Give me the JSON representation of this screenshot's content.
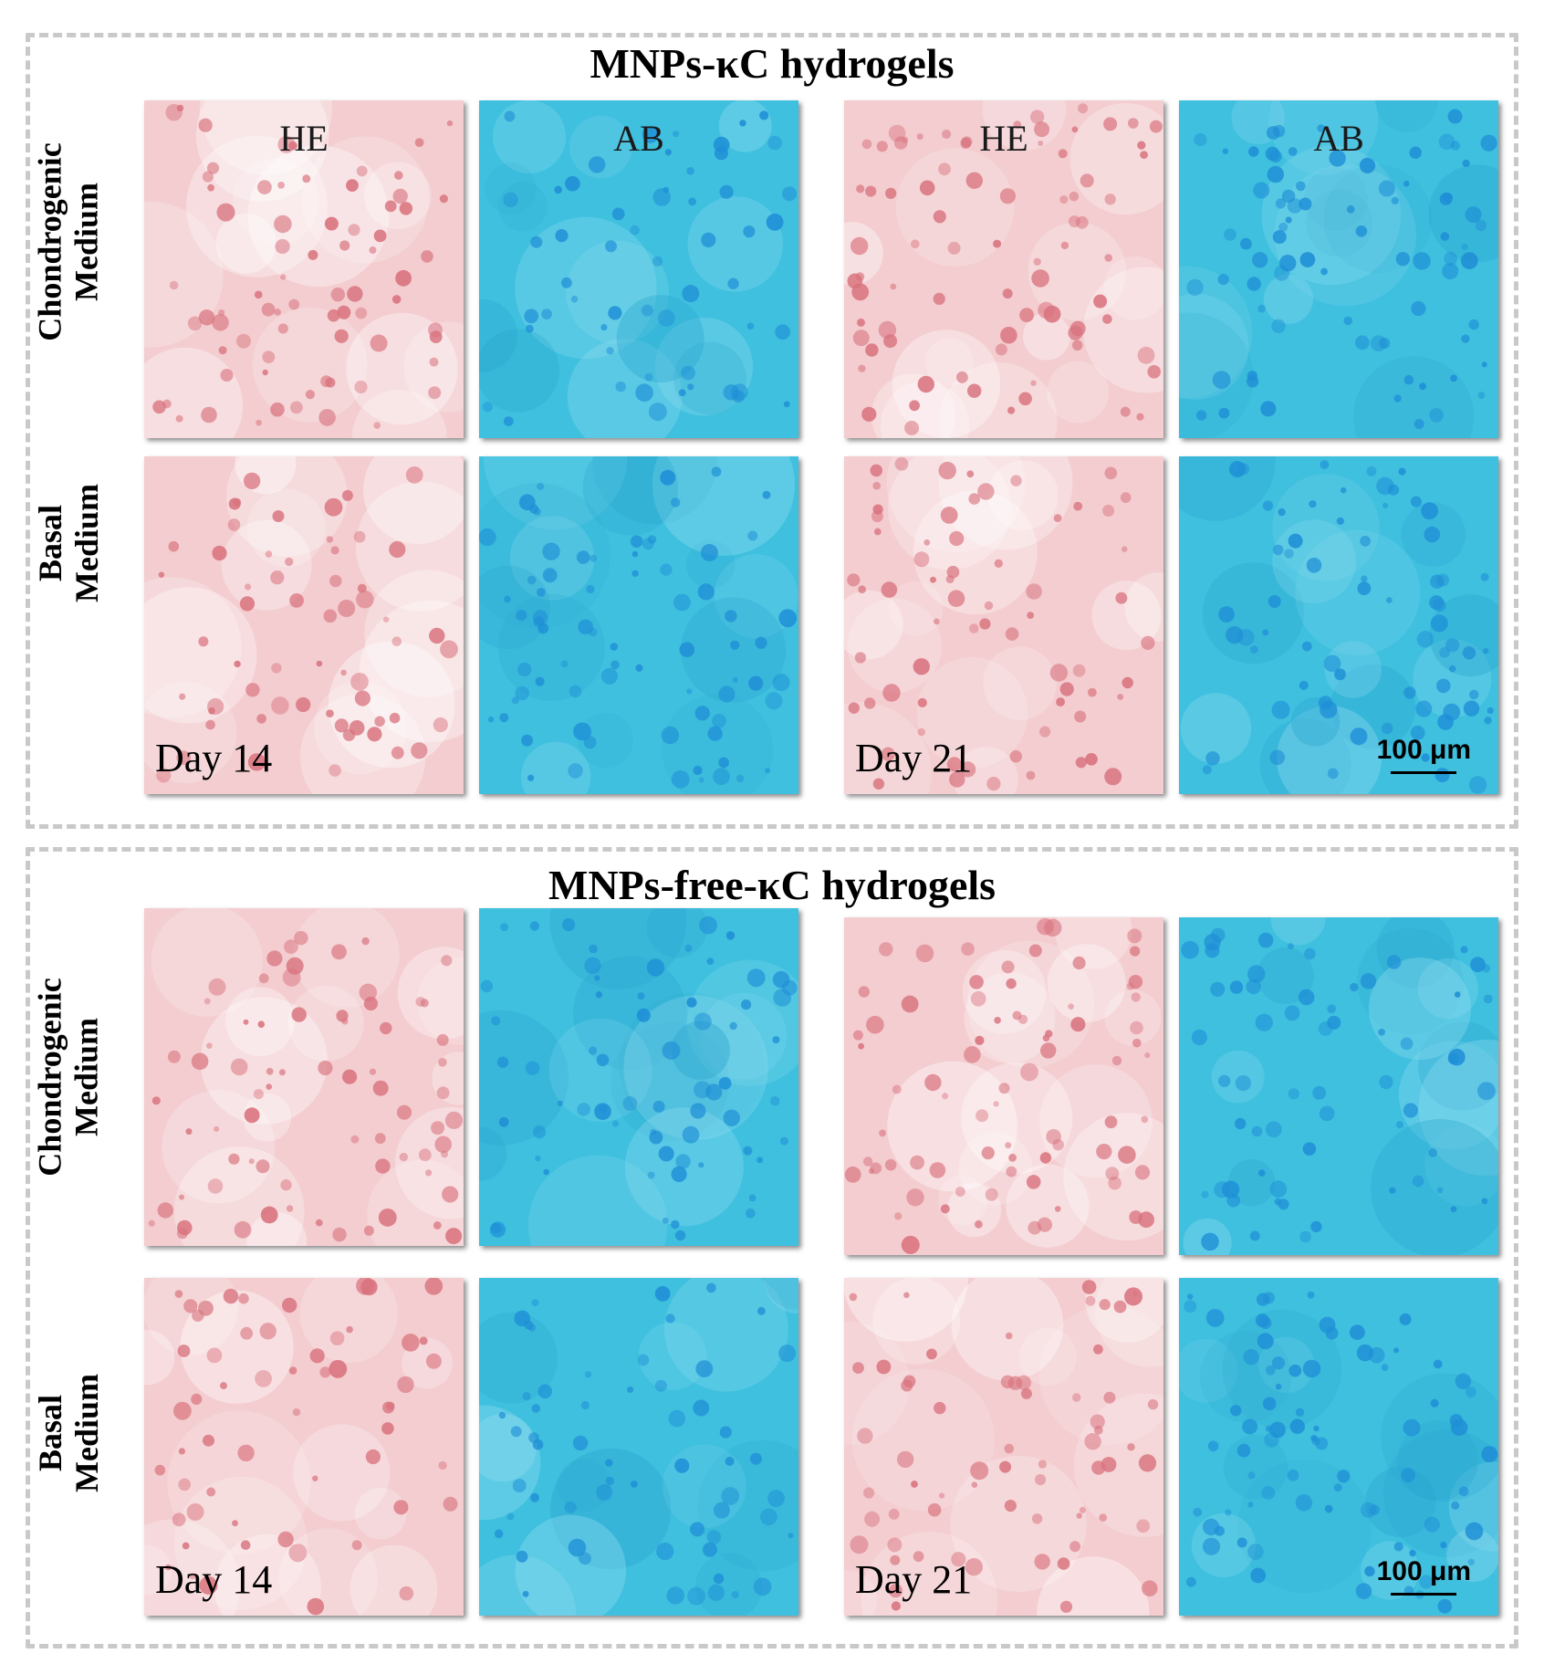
{
  "groups": [
    {
      "title": "MNPs-κC hydrogels",
      "rows": [
        {
          "label_line1": "Chondrogenic",
          "label_line2": "Medium"
        },
        {
          "label_line1": "Basal",
          "label_line2": "Medium"
        }
      ]
    },
    {
      "title": "MNPs-free-κC hydrogels",
      "rows": [
        {
          "label_line1": "Chondrogenic",
          "label_line2": "Medium"
        },
        {
          "label_line1": "Basal",
          "label_line2": "Medium"
        }
      ]
    }
  ],
  "stains": {
    "he": "HE",
    "ab": "AB"
  },
  "days": {
    "d14": "Day 14",
    "d21": "Day 21"
  },
  "scale_bar": "100 μm",
  "colors": {
    "he_background": "#f3cdd0",
    "he_cell": "#d9737e",
    "ab_background": "#3fc0df",
    "ab_cell": "#1f8fd6",
    "frame_dash": "#c9c9c9"
  }
}
